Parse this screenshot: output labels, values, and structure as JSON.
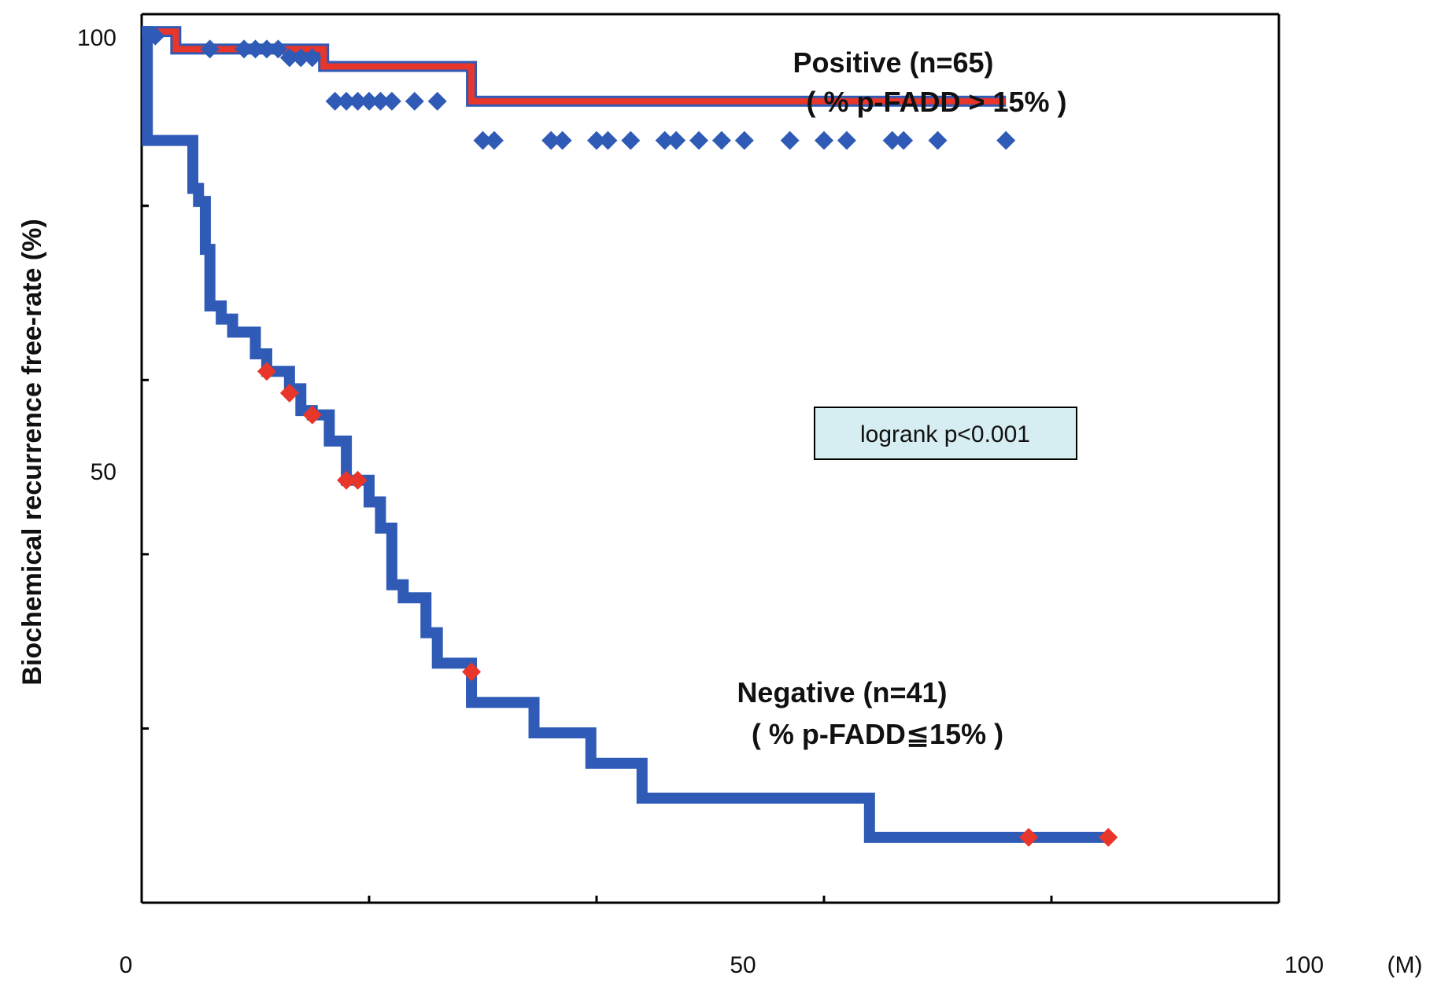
{
  "chart_data": {
    "type": "line",
    "step": true,
    "title": "",
    "xlabel": "",
    "ylabel": "Biochemical recurrence free-rate (%)",
    "x_unit": "(M)",
    "xlim": [
      0,
      100
    ],
    "ylim": [
      0,
      102
    ],
    "x_ticks_labeled": [
      0,
      50,
      100
    ],
    "x_ticks_minor": [
      0,
      20,
      40,
      60,
      80,
      100
    ],
    "y_ticks_labeled": [
      50,
      100
    ],
    "y_ticks_minor": [
      0,
      20,
      40,
      60,
      80,
      100
    ],
    "grid": false,
    "legend": "none",
    "colors": {
      "line_outer": "#2f5bb7",
      "line_inner": "#e8362a",
      "positive_censor": "#2f5bb7",
      "negative_censor": "#e8362a",
      "pvalue_box_fill": "#d6eef2"
    },
    "annotation": "logrank p<0.001",
    "series": [
      {
        "label": "Positive (n=65)",
        "sublabel": "( % p-FADD > 15% )",
        "steps": [
          [
            0,
            100
          ],
          [
            3,
            98
          ],
          [
            16,
            96
          ],
          [
            29,
            92
          ],
          [
            76,
            92
          ]
        ],
        "censored": [
          [
            0.8,
            99.5
          ],
          [
            1.2,
            99.5
          ],
          [
            6,
            98
          ],
          [
            9,
            98
          ],
          [
            10,
            98
          ],
          [
            11,
            98
          ],
          [
            12,
            98
          ],
          [
            13,
            97
          ],
          [
            14,
            97
          ],
          [
            15,
            97
          ],
          [
            17,
            92
          ],
          [
            18,
            92
          ],
          [
            19,
            92
          ],
          [
            20,
            92
          ],
          [
            21,
            92
          ],
          [
            22,
            92
          ],
          [
            24,
            92
          ],
          [
            26,
            92
          ],
          [
            30,
            87.5
          ],
          [
            31,
            87.5
          ],
          [
            36,
            87.5
          ],
          [
            37,
            87.5
          ],
          [
            40,
            87.5
          ],
          [
            41,
            87.5
          ],
          [
            43,
            87.5
          ],
          [
            46,
            87.5
          ],
          [
            47,
            87.5
          ],
          [
            49,
            87.5
          ],
          [
            51,
            87.5
          ],
          [
            53,
            87.5
          ],
          [
            57,
            87.5
          ],
          [
            60,
            87.5
          ],
          [
            62,
            87.5
          ],
          [
            66,
            87.5
          ],
          [
            67,
            87.5
          ],
          [
            70,
            87.5
          ],
          [
            76,
            87.5
          ]
        ]
      },
      {
        "label": "Negative (n=41)",
        "sublabel": "( % p-FADD≦15% )",
        "steps": [
          [
            0,
            100
          ],
          [
            0.5,
            87.5
          ],
          [
            4.5,
            82
          ],
          [
            5,
            80.5
          ],
          [
            5.6,
            75
          ],
          [
            6,
            68.5
          ],
          [
            7,
            67
          ],
          [
            8,
            65.5
          ],
          [
            10,
            63
          ],
          [
            11,
            61
          ],
          [
            13,
            59
          ],
          [
            14,
            56.5
          ],
          [
            15,
            56
          ],
          [
            16.5,
            53
          ],
          [
            18,
            48.5
          ],
          [
            20,
            46
          ],
          [
            21,
            43
          ],
          [
            22,
            36.5
          ],
          [
            23,
            35
          ],
          [
            25,
            31
          ],
          [
            26,
            27.5
          ],
          [
            29,
            23
          ],
          [
            34.5,
            19.5
          ],
          [
            39.5,
            16
          ],
          [
            44,
            12
          ],
          [
            64,
            7.5
          ],
          [
            85,
            7.5
          ]
        ],
        "censored": [
          [
            11,
            61
          ],
          [
            13,
            58.5
          ],
          [
            15,
            56
          ],
          [
            18,
            48.5
          ],
          [
            19,
            48.5
          ],
          [
            29,
            26.5
          ],
          [
            78,
            7.5
          ],
          [
            85,
            7.5
          ]
        ]
      }
    ]
  }
}
